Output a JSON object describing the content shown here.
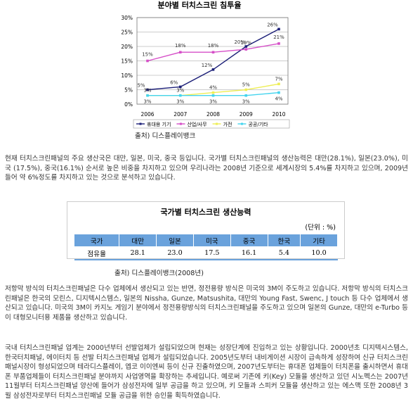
{
  "chart_data": {
    "type": "line",
    "title": "분야별 터치스크린 침투율",
    "categories": [
      "2006",
      "2007",
      "2008",
      "2009",
      "2010"
    ],
    "ylim": [
      0,
      30
    ],
    "yticks": [
      {
        "value": 0,
        "label": "0%"
      },
      {
        "value": 5,
        "label": "5%"
      },
      {
        "value": 10,
        "label": "10%"
      },
      {
        "value": 15,
        "label": "15%"
      },
      {
        "value": 20,
        "label": "20%"
      },
      {
        "value": 25,
        "label": "25%"
      },
      {
        "value": 30,
        "label": "30%"
      }
    ],
    "grid": true,
    "legend": "bottom",
    "series": [
      {
        "name": "휴대용 기기",
        "color": "#1c1f78",
        "values": [
          5,
          6,
          12,
          20,
          26
        ],
        "value_labels": [
          "5%",
          "6%",
          "12%",
          "20%",
          "26%"
        ]
      },
      {
        "name": "산업/사무",
        "color": "#d64fc8",
        "values": [
          15,
          18,
          18,
          19,
          21
        ],
        "value_labels": [
          "15%",
          "18%",
          "18%",
          "19%",
          "21%"
        ]
      },
      {
        "name": "가전",
        "color": "#eeee55",
        "values": [
          3,
          3,
          4,
          5,
          7
        ],
        "value_labels": [
          "3%",
          "3%",
          "4%",
          "5%",
          "7%"
        ]
      },
      {
        "name": "공공/기타",
        "color": "#44d4ee",
        "values": [
          3,
          3,
          3,
          3,
          4
        ],
        "value_labels": [
          "3%",
          "3%",
          "3%",
          "3%",
          "4%"
        ]
      }
    ]
  },
  "caption1": "출처) 디스플레이뱅크",
  "paragraphs": [
    "현재 터치스크린패널의 주요 생산국은 대만, 일본, 미국, 중국 등입니다. 국가별 터치스크린패널의 생산능력은 대만(28.1%), 일본(23.0%), 미국 (17.5%), 중국(16.1%) 순서로 높은 비중을 차지하고 있으며 우리나라는 2008년 기준으로 세계시장의 5.4%를 차지하고 있으며, 2009년 들어 약 6%정도를 차지하고 있는 것으로 분석하고 있습니다.",
    "저항막 방식의 터치스크린패널은 다수 업체에서 생산되고 있는 반면, 정전용량 방식은 미국의 3M이 주도하고 있습니다. 저항막 방식의 터치스크린패널은 한국의 모린스, 디지텍시스템스, 일본의 Nissha, Gunze, Matsushita, 대만의 Young Fast, Swenc, J touch 등 다수 업체에서 생산되고 있습니다. 미국의 3M이 카지노 게임기 분야에서 정전용량방식의 터치스크린패널을 주도하고 있으며 일본의 Gunze, 대만의 e-Turbo 등이 대형모니터용 제품을 생산하고 있습니다.",
    "국내 터치스크린패널 업계는 2000년부터 선발업체가 설립되었으며 현재는 성장단계에 진입하고 있는 상황입니다. 2000년초 디지텍시스템스, 한국터치패널, 에이터치 등 선발 터치스크린패널 업체가 설립되었습니다. 2005년도부터 내비게이션 시장이 급속하게 성장하여 신규 터치스크린패널시장이 형성되었으며 테라디스플레이, 엡코 이이엔씨 등이 신규 진출하였으며, 2007년도부터는 휴대폰 업체들이 터치폰을 출시하면서 휴대폰 부품업체들이 터치스크린패널 분야까지 사업영역을 확장하는 추세입니다. 예로써 기존에 키(Key) 모듈을 생산하고 있던 시노펙스는 2007년 11월부터 터치스크린패널 양산에 들어가 삼성전자에 일부 공급을 하고 있으며, 키 모듈과 스피커 모듈을 생산하고 있는 에스맥 또한 2008년 3월 삼성전자로부터 터치스크린패널 모듈 공급을 위한 승인을 획득하였습니다."
  ],
  "table": {
    "title": "국가별 터치스크린 생산능력",
    "unit": "(단위 : %)",
    "header": [
      "국가",
      "대만",
      "일본",
      "미국",
      "중국",
      "한국",
      "기타"
    ],
    "rows": [
      [
        "점유율",
        "28.1",
        "23.0",
        "17.5",
        "16.1",
        "5.4",
        "10.0"
      ]
    ]
  },
  "caption2": "출처) 디스플레이뱅크(2008년)"
}
